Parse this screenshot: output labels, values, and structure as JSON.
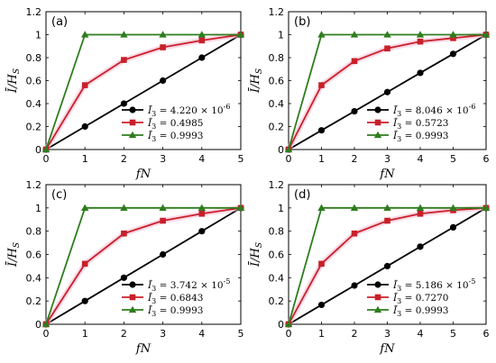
{
  "figure": {
    "colors": {
      "series1": "#000000",
      "series2": "#c8202a",
      "series3": "#2e7d1e",
      "glow": "#f4b8cf"
    }
  },
  "chart_data": [
    {
      "type": "line",
      "panel_label": "(a)",
      "xlabel": "fN",
      "ylabel": "Ī/H_S",
      "xlim": [
        0,
        5
      ],
      "ylim": [
        0,
        1.2
      ],
      "xticks": [
        0,
        1,
        2,
        3,
        4,
        5
      ],
      "yticks": [
        0,
        0.2,
        0.4,
        0.6,
        0.8,
        1,
        1.2
      ],
      "legend_position": "bottom-right",
      "series": [
        {
          "name": "Ī3 = 4.220 × 10^-6",
          "marker": "circle",
          "color": "#000000",
          "x": [
            0,
            1,
            2,
            3,
            4,
            5
          ],
          "y": [
            0,
            0.2,
            0.4,
            0.6,
            0.8,
            1.0
          ]
        },
        {
          "name": "Ī3 = 0.4985",
          "marker": "square",
          "color": "#c8202a",
          "x": [
            0,
            1,
            2,
            3,
            4,
            5
          ],
          "y": [
            0,
            0.56,
            0.78,
            0.89,
            0.95,
            1.0
          ]
        },
        {
          "name": "Ī3 = 0.9993",
          "marker": "triangle",
          "color": "#2e7d1e",
          "x": [
            0,
            1,
            2,
            3,
            4,
            5
          ],
          "y": [
            0,
            1.0,
            1.0,
            1.0,
            1.0,
            1.0
          ]
        }
      ]
    },
    {
      "type": "line",
      "panel_label": "(b)",
      "xlabel": "fN",
      "ylabel": "Ī/H_S",
      "xlim": [
        0,
        6
      ],
      "ylim": [
        0,
        1.2
      ],
      "xticks": [
        0,
        1,
        2,
        3,
        4,
        5,
        6
      ],
      "yticks": [
        0,
        0.2,
        0.4,
        0.6,
        0.8,
        1,
        1.2
      ],
      "legend_position": "bottom-right",
      "series": [
        {
          "name": "Ī3 = 8.046 × 10^-6",
          "marker": "circle",
          "color": "#000000",
          "x": [
            0,
            1,
            2,
            3,
            4,
            5,
            6
          ],
          "y": [
            0,
            0.167,
            0.333,
            0.5,
            0.667,
            0.833,
            1.0
          ]
        },
        {
          "name": "Ī3 = 0.5723",
          "marker": "square",
          "color": "#c8202a",
          "x": [
            0,
            1,
            2,
            3,
            4,
            5,
            6
          ],
          "y": [
            0,
            0.56,
            0.77,
            0.88,
            0.94,
            0.97,
            1.0
          ]
        },
        {
          "name": "Ī3 = 0.9993",
          "marker": "triangle",
          "color": "#2e7d1e",
          "x": [
            0,
            1,
            2,
            3,
            4,
            5,
            6
          ],
          "y": [
            0,
            1.0,
            1.0,
            1.0,
            1.0,
            1.0,
            1.0
          ]
        }
      ]
    },
    {
      "type": "line",
      "panel_label": "(c)",
      "xlabel": "fN",
      "ylabel": "Ī/H_S",
      "xlim": [
        0,
        5
      ],
      "ylim": [
        0,
        1.2
      ],
      "xticks": [
        0,
        1,
        2,
        3,
        4,
        5
      ],
      "yticks": [
        0,
        0.2,
        0.4,
        0.6,
        0.8,
        1,
        1.2
      ],
      "legend_position": "bottom-right",
      "series": [
        {
          "name": "Ī3 = 3.742 × 10^-5",
          "marker": "circle",
          "color": "#000000",
          "x": [
            0,
            1,
            2,
            3,
            4,
            5
          ],
          "y": [
            0,
            0.2,
            0.4,
            0.6,
            0.8,
            1.0
          ]
        },
        {
          "name": "Ī3 = 0.6843",
          "marker": "square",
          "color": "#c8202a",
          "x": [
            0,
            1,
            2,
            3,
            4,
            5
          ],
          "y": [
            0,
            0.52,
            0.78,
            0.89,
            0.95,
            1.0
          ]
        },
        {
          "name": "Ī3 = 0.9993",
          "marker": "triangle",
          "color": "#2e7d1e",
          "x": [
            0,
            1,
            2,
            3,
            4,
            5
          ],
          "y": [
            0,
            1.0,
            1.0,
            1.0,
            1.0,
            1.0
          ]
        }
      ]
    },
    {
      "type": "line",
      "panel_label": "(d)",
      "xlabel": "fN",
      "ylabel": "Ī/H_S",
      "xlim": [
        0,
        6
      ],
      "ylim": [
        0,
        1.2
      ],
      "xticks": [
        0,
        1,
        2,
        3,
        4,
        5,
        6
      ],
      "yticks": [
        0,
        0.2,
        0.4,
        0.6,
        0.8,
        1,
        1.2
      ],
      "legend_position": "bottom-right",
      "series": [
        {
          "name": "Ī3 = 5.186 × 10^-5",
          "marker": "circle",
          "color": "#000000",
          "x": [
            0,
            1,
            2,
            3,
            4,
            5,
            6
          ],
          "y": [
            0,
            0.167,
            0.333,
            0.5,
            0.667,
            0.833,
            1.0
          ]
        },
        {
          "name": "Ī3 = 0.7270",
          "marker": "square",
          "color": "#c8202a",
          "x": [
            0,
            1,
            2,
            3,
            4,
            5,
            6
          ],
          "y": [
            0,
            0.52,
            0.78,
            0.89,
            0.95,
            0.98,
            1.0
          ]
        },
        {
          "name": "Ī3 = 0.9993",
          "marker": "triangle",
          "color": "#2e7d1e",
          "x": [
            0,
            1,
            2,
            3,
            4,
            5,
            6
          ],
          "y": [
            0,
            1.0,
            1.0,
            1.0,
            1.0,
            1.0,
            1.0
          ]
        }
      ]
    }
  ]
}
